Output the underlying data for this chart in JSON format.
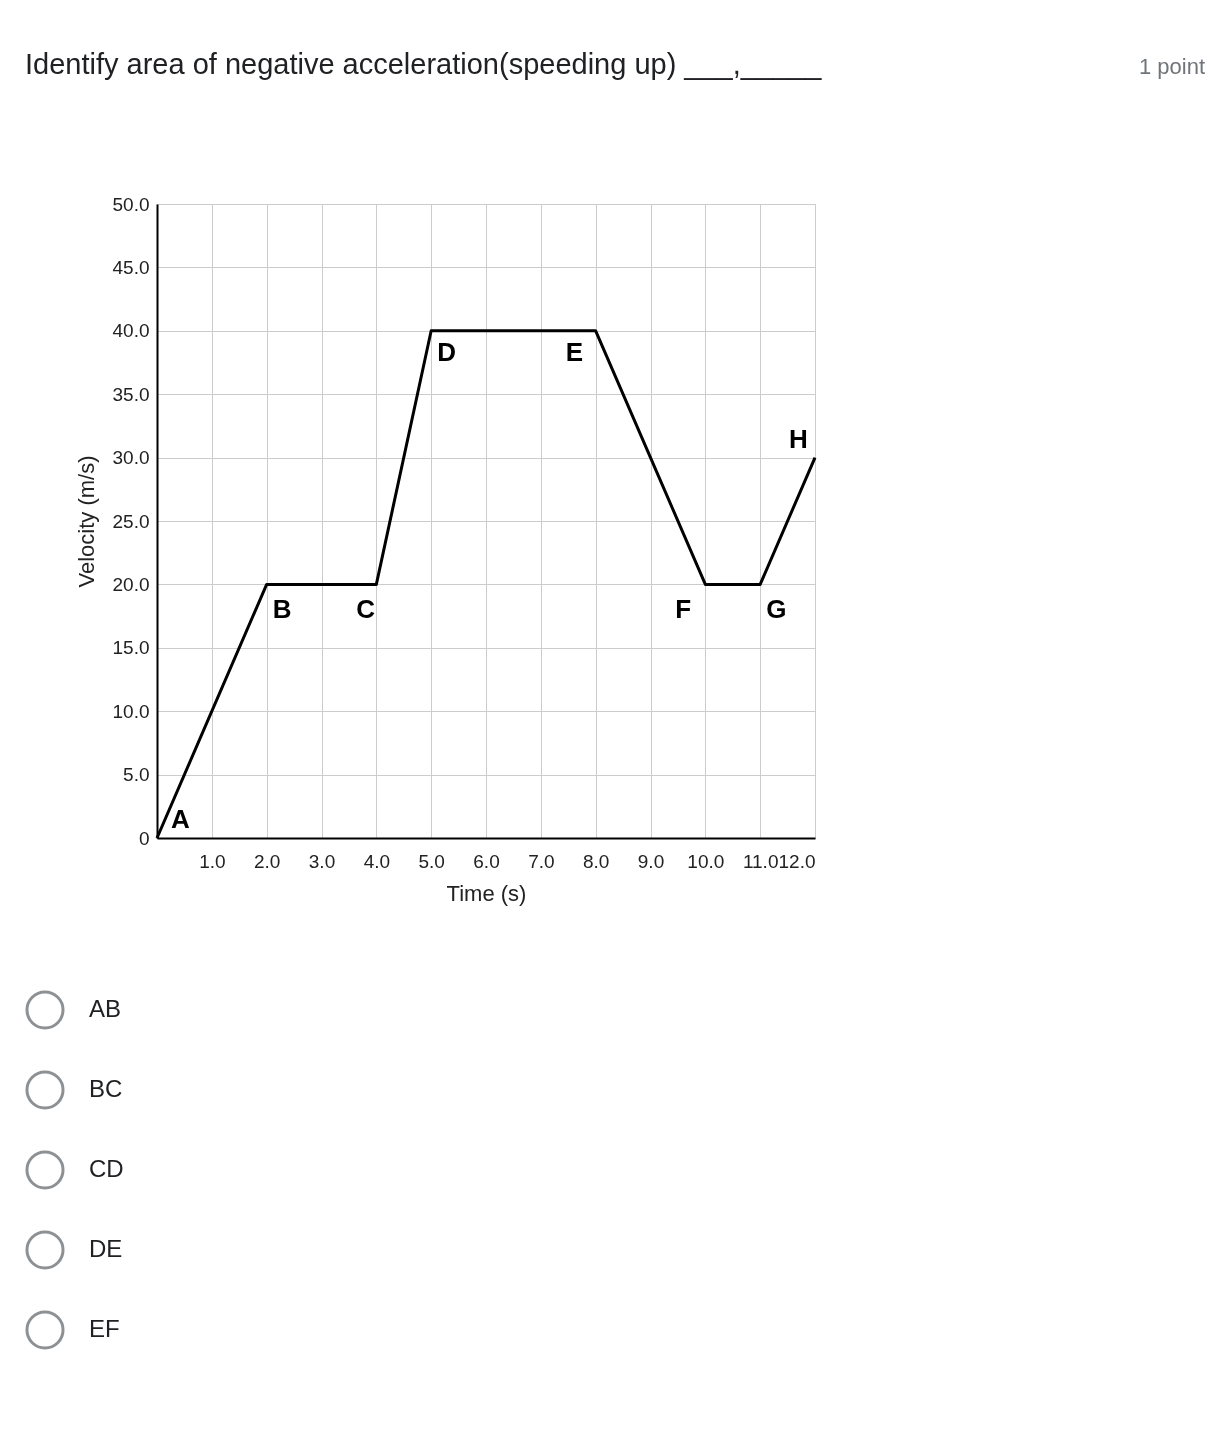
{
  "chart_data": {
    "type": "line",
    "title": "Identify area of negative acceleration(speeding up) ___,_____",
    "xlabel": "Time (s)",
    "ylabel": "Velocity (m/s)",
    "x": [
      0,
      2,
      4,
      5,
      8,
      10,
      11,
      12
    ],
    "series": [
      {
        "color": "#000000",
        "values": [
          0,
          20,
          20,
          40,
          40,
          20,
          20,
          30
        ]
      }
    ],
    "xlim": [
      0,
      12
    ],
    "ylim": [
      0,
      50
    ],
    "xticks": [
      {
        "value": 1,
        "label": "1.0"
      },
      {
        "value": 2,
        "label": "2.0"
      },
      {
        "value": 3,
        "label": "3.0"
      },
      {
        "value": 4,
        "label": "4.0"
      },
      {
        "value": 5,
        "label": "5.0"
      },
      {
        "value": 6,
        "label": "6.0"
      },
      {
        "value": 7,
        "label": "7.0"
      },
      {
        "value": 8,
        "label": "8.0"
      },
      {
        "value": 9,
        "label": "9.0"
      },
      {
        "value": 10,
        "label": "10.0"
      },
      {
        "value": 11,
        "label": "11.0"
      },
      {
        "value": 12,
        "label": "12.0"
      }
    ],
    "yticks": [
      0,
      {
        "value": 5,
        "label": "5.0"
      },
      {
        "value": 10,
        "label": "10.0"
      },
      {
        "value": 15,
        "label": "15.0"
      },
      {
        "value": 20,
        "label": "20.0"
      },
      {
        "value": 25,
        "label": "25.0"
      },
      {
        "value": 30,
        "label": "30.0"
      },
      {
        "value": 35,
        "label": "35.0"
      },
      {
        "value": 40,
        "label": "40.0"
      },
      {
        "value": 45,
        "label": "45.0"
      },
      {
        "value": 50,
        "label": "50.0"
      }
    ],
    "grid": true,
    "marker": "none",
    "line_style": "solid",
    "annotations": [
      {
        "text": "A",
        "x": 0,
        "y": 0
      },
      {
        "text": "B",
        "x": 2,
        "y": 20
      },
      {
        "text": "C",
        "x": 4,
        "y": 20
      },
      {
        "text": "D",
        "x": 5,
        "y": 40
      },
      {
        "text": "E",
        "x": 8,
        "y": 40
      },
      {
        "text": "F",
        "x": 10,
        "y": 20
      },
      {
        "text": "G",
        "x": 11,
        "y": 20
      },
      {
        "text": "H",
        "x": 12,
        "y": 30
      },
      "1 point",
      "AB",
      "BC",
      "CD",
      "DE",
      "EF"
    ]
  }
}
